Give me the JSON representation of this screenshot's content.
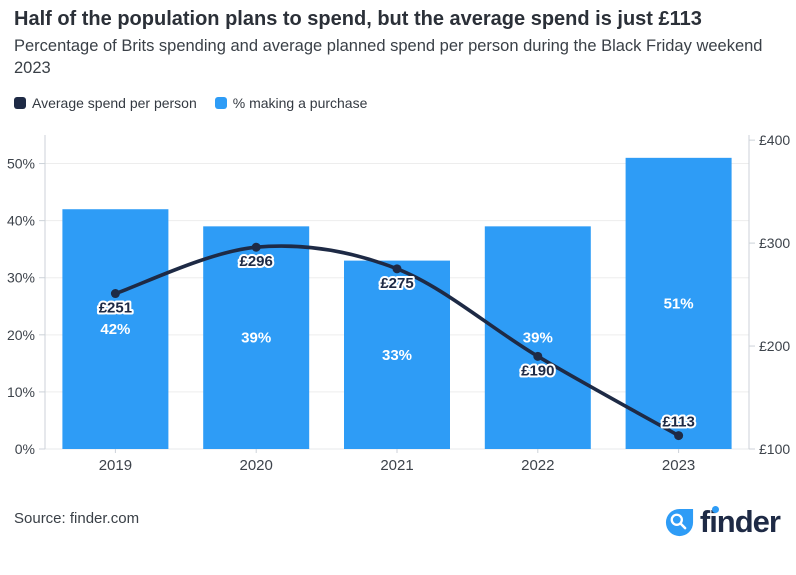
{
  "header": {
    "title": "Half of the population plans to spend, but the average spend is just £113",
    "subtitle": "Percentage of Brits spending and average planned spend per person during the Black Friday weekend 2023"
  },
  "legend": [
    {
      "label": "Average spend per person",
      "color": "#1e2a45"
    },
    {
      "label": "% making a purchase",
      "color": "#2e9cf6"
    }
  ],
  "chart_data": {
    "type": "bar+line combo",
    "categories": [
      "2019",
      "2020",
      "2021",
      "2022",
      "2023"
    ],
    "series": [
      {
        "name": "% making a purchase",
        "type": "bar",
        "axis": "left",
        "values": [
          42,
          39,
          33,
          39,
          51
        ],
        "labels": [
          "42%",
          "39%",
          "33%",
          "39%",
          "51%"
        ],
        "color": "#2e9cf6"
      },
      {
        "name": "Average spend per person",
        "type": "line",
        "axis": "right",
        "values": [
          251,
          296,
          275,
          190,
          113
        ],
        "labels": [
          "£251",
          "£296",
          "£275",
          "£190",
          "£113"
        ],
        "color": "#1e2a45",
        "label_placement": [
          "below",
          "below",
          "below",
          "below",
          "above"
        ]
      }
    ],
    "y_left": {
      "min": 0,
      "max": 55,
      "ticks": [
        0,
        10,
        20,
        30,
        40,
        50
      ],
      "suffix": "%"
    },
    "y_right": {
      "min": 100,
      "max": 405,
      "ticks": [
        100,
        200,
        300,
        400
      ],
      "prefix": "£"
    },
    "grid": "horizontal, at left-axis ticks",
    "legend_position": "top-left",
    "colors": {
      "axis_line": "#ccd2d8",
      "grid_line": "#ededed",
      "tick_label": "#3d434b",
      "bar_label": "#ffffff"
    }
  },
  "footer": {
    "source": "Source: finder.com",
    "logo_text": "finder"
  }
}
